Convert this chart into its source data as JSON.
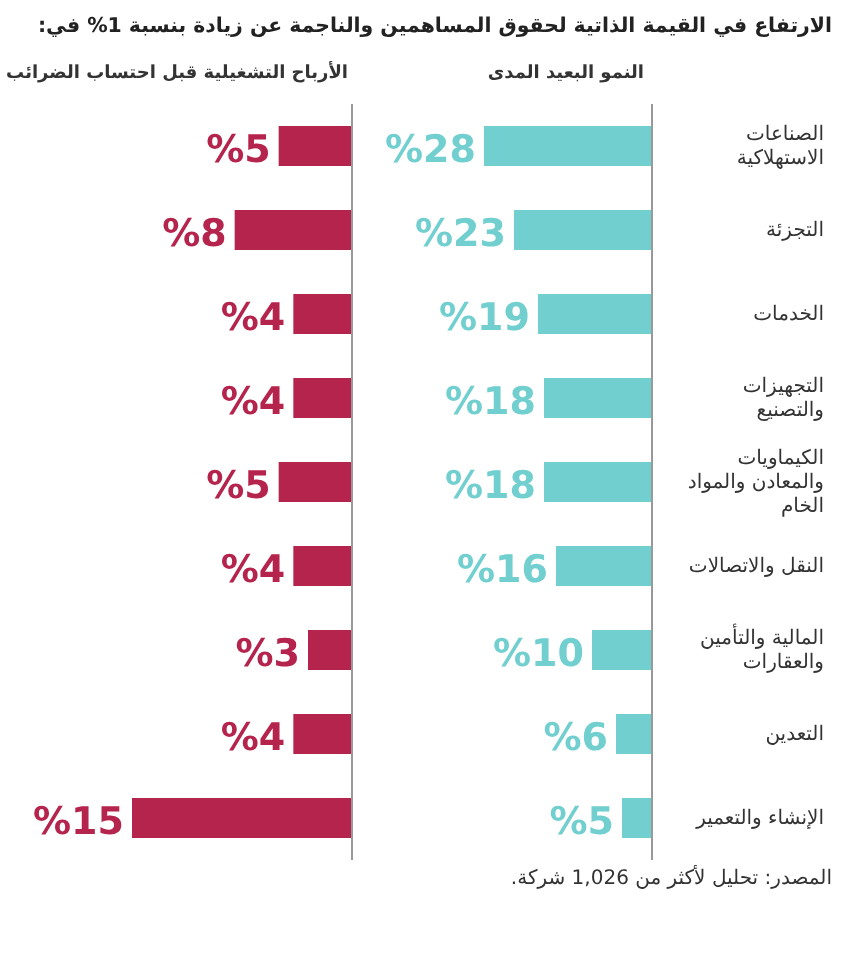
{
  "chart_data": [
    {
      "type": "bar",
      "orientation": "horizontal",
      "title": "الارتفاع في القيمة الذاتية لحقوق المساهمين والناجمة عن زيادة بنسبة 1% في:",
      "subtitle": "النمو البعيد المدى",
      "categories": [
        "الصناعات الاستهلاكية",
        "التجزئة",
        "الخدمات",
        "التجهيزات والتصنيع",
        "الكيماويات والمعادن والمواد الخام",
        "النقل والاتصالات",
        "المالية والتأمين والعقارات",
        "التعدين",
        "الإنشاء والتعمير"
      ],
      "values": [
        28,
        23,
        19,
        18,
        18,
        16,
        10,
        6,
        5
      ],
      "value_labels": [
        "%28",
        "%23",
        "%19",
        "%18",
        "%18",
        "%16",
        "%10",
        "%6",
        "%5"
      ],
      "color": "#72cfcf",
      "annotations": [
        "المصدر: تحليل لأكثر من 1,026 شركة."
      ]
    },
    {
      "type": "bar",
      "orientation": "horizontal",
      "title": "الأرباح التشغيلية قبل احتساب الضرائب",
      "categories": [
        null,
        null,
        null,
        null,
        null,
        null,
        null,
        null,
        null
      ],
      "values": [
        5,
        8,
        4,
        4,
        5,
        4,
        3,
        4,
        15
      ],
      "value_labels": [
        "%5",
        "%8",
        "%4",
        "%4",
        "%5",
        "%4",
        "%3",
        "%4",
        "%15"
      ],
      "color": "#b5244c",
      "tick_labels": false
    }
  ]
}
